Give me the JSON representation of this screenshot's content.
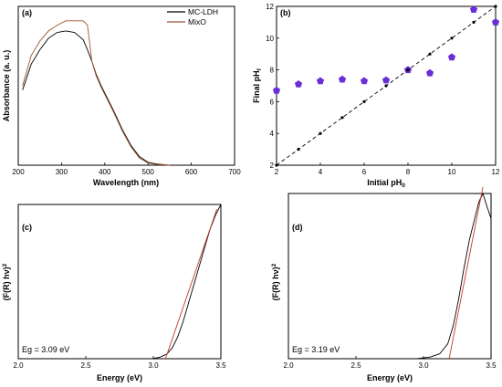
{
  "panels": {
    "a": {
      "label": "(a)",
      "xlabel": "Wavelength (nm)",
      "ylabel": "Absorbance (a. u.)"
    },
    "b": {
      "label": "(b)",
      "xlabel_main": "Initial pH",
      "xlabel_sub": "0",
      "ylabel_main": "Final pH",
      "ylabel_sub": "f"
    },
    "c": {
      "label": "(c)",
      "xlabel": "Energy (eV)",
      "ylabel": "(F(R) hν)",
      "ylabel_sup": "2",
      "eg_text": "Eg = 3.09 eV"
    },
    "d": {
      "label": "(d)",
      "xlabel": "Energy (eV)",
      "ylabel": "(F(R) hν)",
      "ylabel_sup": "2",
      "eg_text": "Eg = 3.19 eV"
    }
  },
  "chart_data": [
    {
      "type": "line",
      "panel": "a",
      "xlabel": "Wavelength (nm)",
      "ylabel": "Absorbance (a. u.)",
      "xlim": [
        200,
        700
      ],
      "xticks": [
        200,
        300,
        400,
        500,
        600,
        700
      ],
      "legend_position": "top-right",
      "series": [
        {
          "name": "MC-LDH",
          "color": "#000000",
          "x": [
            210,
            230,
            250,
            270,
            290,
            310,
            330,
            350,
            360,
            370,
            380,
            390,
            400,
            420,
            440,
            460,
            480,
            500,
            520,
            550
          ],
          "y": [
            0.52,
            0.7,
            0.8,
            0.88,
            0.92,
            0.93,
            0.92,
            0.87,
            0.8,
            0.72,
            0.63,
            0.56,
            0.5,
            0.38,
            0.25,
            0.14,
            0.06,
            0.02,
            0.008,
            0.0
          ]
        },
        {
          "name": "MixO",
          "color": "#a0522d",
          "x": [
            210,
            230,
            250,
            270,
            290,
            310,
            330,
            350,
            360,
            365,
            370,
            380,
            390,
            400,
            420,
            440,
            460,
            480,
            500,
            520,
            550
          ],
          "y": [
            0.55,
            0.76,
            0.86,
            0.93,
            0.97,
            1.0,
            1.0,
            1.0,
            0.97,
            0.85,
            0.72,
            0.62,
            0.55,
            0.49,
            0.37,
            0.24,
            0.13,
            0.05,
            0.015,
            0.005,
            0.0
          ]
        }
      ]
    },
    {
      "type": "scatter",
      "panel": "b",
      "xlabel": "Initial pH0",
      "ylabel": "Final pHf",
      "xlim": [
        2,
        12
      ],
      "ylim": [
        2,
        12
      ],
      "xticks": [
        2,
        4,
        6,
        8,
        10,
        12
      ],
      "yticks": [
        2,
        4,
        6,
        8,
        10,
        12
      ],
      "series": [
        {
          "name": "",
          "marker": "pentagon",
          "color": "#6a2fd6",
          "x": [
            2,
            3,
            4,
            5,
            6,
            7,
            8,
            9,
            10,
            11,
            12
          ],
          "y": [
            6.7,
            7.1,
            7.3,
            7.4,
            7.3,
            7.35,
            8.0,
            7.8,
            8.8,
            11.8,
            11.0
          ]
        },
        {
          "name": "",
          "marker": "dot",
          "color": "#000000",
          "line": "dashed",
          "x": [
            2,
            3,
            4,
            5,
            6,
            7,
            8,
            9,
            10,
            11,
            12
          ],
          "y": [
            2,
            3,
            4,
            5,
            6,
            7,
            8,
            9,
            10,
            11,
            12
          ]
        }
      ]
    },
    {
      "type": "line",
      "panel": "c",
      "xlabel": "Energy (eV)",
      "ylabel": "(F(R) hν)^2",
      "xlim": [
        2.0,
        3.5
      ],
      "xticks": [
        2.0,
        2.5,
        3.0,
        3.5
      ],
      "annotation": "Eg = 3.09 eV",
      "series": [
        {
          "name": "",
          "color": "#000000",
          "x": [
            2.99,
            3.05,
            3.1,
            3.14,
            3.18,
            3.22,
            3.26,
            3.3,
            3.34,
            3.38,
            3.42,
            3.46,
            3.5
          ],
          "y": [
            0.0,
            0.01,
            0.03,
            0.07,
            0.14,
            0.24,
            0.36,
            0.48,
            0.6,
            0.72,
            0.84,
            0.93,
            1.0
          ]
        },
        {
          "name": "",
          "color": "#c0392b",
          "line": "tangent",
          "x": [
            3.09,
            3.47
          ],
          "y": [
            0.0,
            0.97
          ]
        }
      ]
    },
    {
      "type": "line",
      "panel": "d",
      "xlabel": "Energy (eV)",
      "ylabel": "(F(R) hν)^2",
      "xlim": [
        2.0,
        3.5
      ],
      "xticks": [
        2.0,
        2.5,
        3.0,
        3.5
      ],
      "annotation": "Eg = 3.19 eV",
      "series": [
        {
          "name": "",
          "color": "#000000",
          "x": [
            2.95,
            3.05,
            3.12,
            3.18,
            3.22,
            3.26,
            3.3,
            3.34,
            3.38,
            3.41,
            3.44,
            3.47,
            3.5
          ],
          "y": [
            0.0,
            0.01,
            0.03,
            0.09,
            0.2,
            0.36,
            0.55,
            0.72,
            0.85,
            0.95,
            1.0,
            0.92,
            0.85
          ]
        },
        {
          "name": "",
          "color": "#c0392b",
          "line": "tangent",
          "x": [
            3.19,
            3.44
          ],
          "y": [
            0.0,
            1.04
          ]
        }
      ]
    }
  ]
}
